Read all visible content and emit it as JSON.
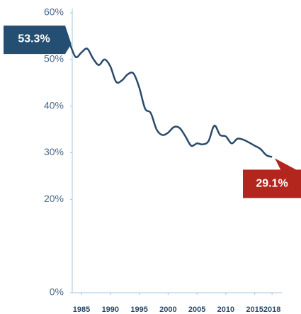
{
  "chart_data": {
    "type": "line",
    "x": [
      1983,
      1984,
      1985,
      1986,
      1987,
      1988,
      1989,
      1990,
      1991,
      1992,
      1993,
      1994,
      1995,
      1996,
      1997,
      1998,
      1999,
      2000,
      2001,
      2002,
      2003,
      2004,
      2005,
      2006,
      2007,
      2008,
      2009,
      2010,
      2011,
      2012,
      2013,
      2014,
      2015,
      2016,
      2017,
      2018
    ],
    "series": [
      {
        "color": "#2a4a6b",
        "values": [
          53.3,
          50.5,
          51.5,
          52.3,
          50.2,
          48.8,
          50.0,
          48.5,
          45.2,
          45.5,
          46.8,
          47.0,
          44.0,
          39.5,
          38.5,
          35.0,
          33.8,
          34.3,
          35.5,
          35.3,
          33.5,
          31.5,
          32.0,
          31.8,
          32.5,
          35.8,
          33.8,
          33.5,
          32.0,
          33.0,
          32.8,
          32.2,
          31.5,
          30.8,
          29.5,
          29.1
        ],
        "value_labels": [
          "53.3%",
          null,
          null,
          null,
          null,
          null,
          null,
          null,
          null,
          null,
          null,
          null,
          null,
          null,
          null,
          null,
          null,
          null,
          null,
          null,
          null,
          null,
          null,
          null,
          null,
          null,
          null,
          null,
          null,
          null,
          null,
          null,
          null,
          null,
          null,
          "29.1%"
        ]
      }
    ],
    "xlim": [
      1983.4,
      2019.7
    ],
    "xticks": [
      1985,
      1990,
      1995,
      2000,
      2005,
      2010,
      2015,
      2018
    ],
    "ylim": [
      0,
      60
    ],
    "yticks": [
      {
        "value": 0,
        "label": "0%"
      },
      {
        "value": 20,
        "label": "20%"
      },
      {
        "value": 30,
        "label": "30%"
      },
      {
        "value": 40,
        "label": "40%"
      },
      {
        "value": 50,
        "label": "50%"
      },
      {
        "value": 60,
        "label": "60%"
      }
    ],
    "start_color": "#244f72",
    "end_color": "#b3261e"
  }
}
